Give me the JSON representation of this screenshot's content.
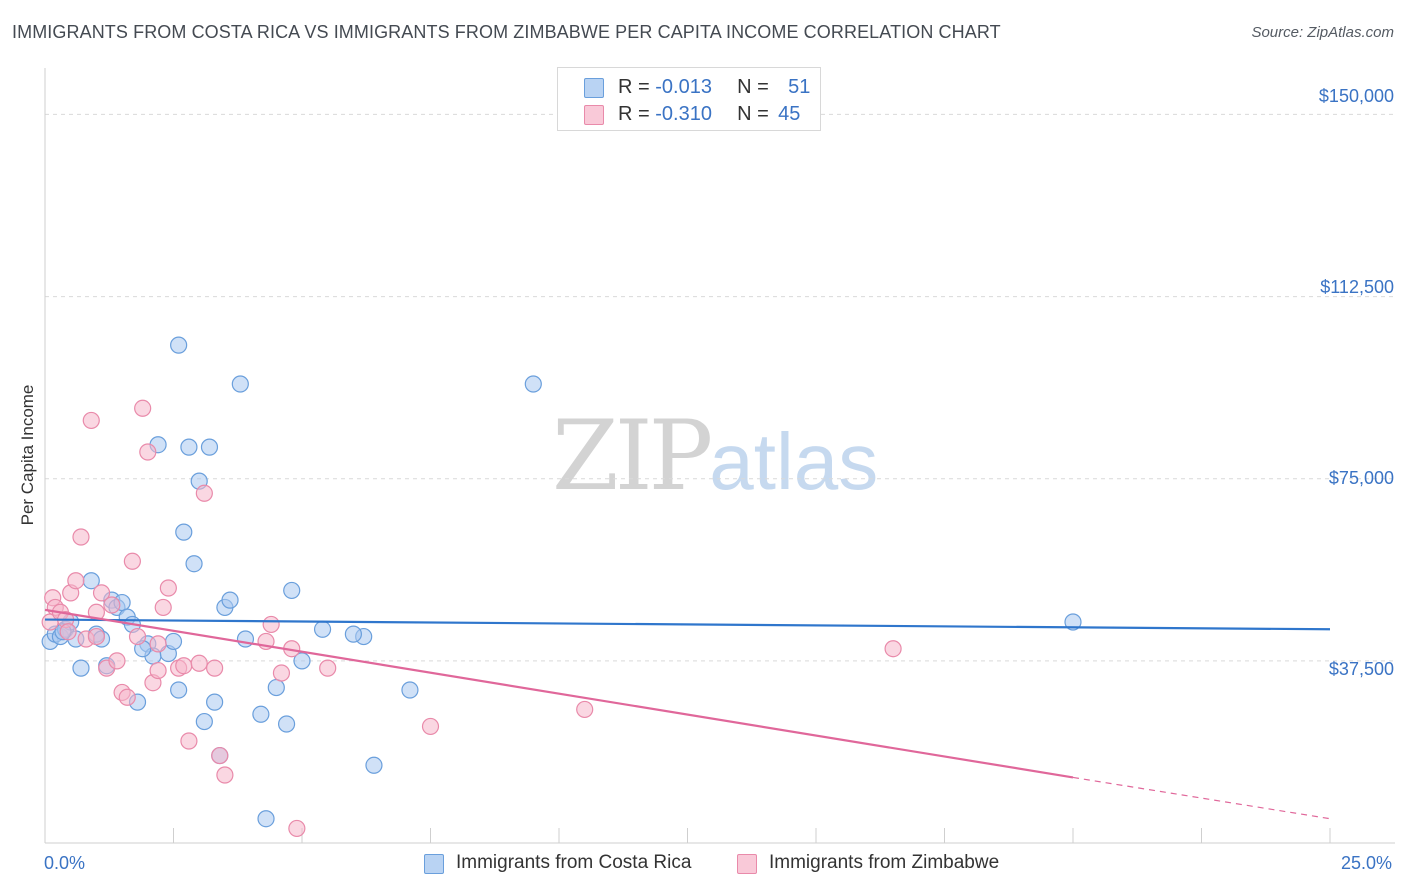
{
  "title": "IMMIGRANTS FROM COSTA RICA VS IMMIGRANTS FROM ZIMBABWE PER CAPITA INCOME CORRELATION CHART",
  "source": "Source: ZipAtlas.com",
  "watermark": {
    "part1": "ZIP",
    "part2": "atlas"
  },
  "colors": {
    "blue_fill": "#a9c8f0",
    "blue_stroke": "#6a9fdc",
    "blue_line": "#2f76cc",
    "pink_fill": "#f5b6cb",
    "pink_stroke": "#e98aaa",
    "pink_line": "#e0679a",
    "tick_text": "#3a73c4",
    "grid": "#d9d9d9"
  },
  "legend": {
    "series1": {
      "r_label": "R = ",
      "r_value": "-0.013",
      "n_label": "N = ",
      "n_value": "51"
    },
    "series2": {
      "r_label": "R = ",
      "r_value": "-0.310",
      "n_label": "N = ",
      "n_value": "45"
    }
  },
  "bottom_legend": {
    "series1": "Immigrants from Costa Rica",
    "series2": "Immigrants from Zimbabwe"
  },
  "chart_data": {
    "type": "scatter",
    "title": "IMMIGRANTS FROM COSTA RICA VS IMMIGRANTS FROM ZIMBABWE PER CAPITA INCOME CORRELATION CHART",
    "xlabel": "",
    "ylabel": "Per Capita Income",
    "xlim": [
      0,
      25
    ],
    "ylim": [
      0,
      157500
    ],
    "x_tick_labels": {
      "left": "0.0%",
      "right": "25.0%"
    },
    "y_ticks": [
      {
        "value": 37500,
        "label": "$37,500"
      },
      {
        "value": 75000,
        "label": "$75,000"
      },
      {
        "value": 112500,
        "label": "$112,500"
      },
      {
        "value": 150000,
        "label": "$150,000"
      }
    ],
    "series": [
      {
        "name": "Immigrants from Costa Rica",
        "color": "blue",
        "trend": {
          "x0": 0.0,
          "y0": 46000,
          "x1": 25.0,
          "y1": 44000
        },
        "points": [
          [
            0.1,
            41500
          ],
          [
            0.2,
            43000
          ],
          [
            0.3,
            42500
          ],
          [
            0.4,
            44000
          ],
          [
            0.5,
            45500
          ],
          [
            0.6,
            42000
          ],
          [
            0.7,
            36000
          ],
          [
            0.9,
            54000
          ],
          [
            1.0,
            43000
          ],
          [
            1.1,
            42000
          ],
          [
            1.2,
            36500
          ],
          [
            1.3,
            50000
          ],
          [
            1.4,
            48500
          ],
          [
            1.5,
            49500
          ],
          [
            1.6,
            46500
          ],
          [
            1.7,
            45000
          ],
          [
            1.8,
            29000
          ],
          [
            2.0,
            41000
          ],
          [
            2.1,
            38500
          ],
          [
            2.2,
            82000
          ],
          [
            2.4,
            39000
          ],
          [
            2.5,
            41500
          ],
          [
            2.6,
            31500
          ],
          [
            2.6,
            102500
          ],
          [
            2.7,
            64000
          ],
          [
            2.8,
            81500
          ],
          [
            2.9,
            57500
          ],
          [
            3.0,
            74500
          ],
          [
            3.1,
            25000
          ],
          [
            3.2,
            81500
          ],
          [
            3.3,
            29000
          ],
          [
            3.4,
            18000
          ],
          [
            3.5,
            48500
          ],
          [
            3.6,
            50000
          ],
          [
            3.8,
            94500
          ],
          [
            4.2,
            26500
          ],
          [
            4.3,
            5000
          ],
          [
            4.5,
            32000
          ],
          [
            4.7,
            24500
          ],
          [
            4.8,
            52000
          ],
          [
            5.0,
            37500
          ],
          [
            5.4,
            44000
          ],
          [
            6.2,
            42500
          ],
          [
            6.4,
            16000
          ],
          [
            7.1,
            31500
          ],
          [
            9.5,
            94500
          ],
          [
            20.0,
            45500
          ],
          [
            6.0,
            43000
          ],
          [
            3.9,
            42000
          ],
          [
            1.9,
            40000
          ],
          [
            0.35,
            43500
          ]
        ]
      },
      {
        "name": "Immigrants from Zimbabwe",
        "color": "pink",
        "trend": {
          "x0": 0.0,
          "y0": 48000,
          "x1": 20.0,
          "y1": 13500,
          "dash_x1": 25.0,
          "dash_y1": 5000
        },
        "points": [
          [
            0.1,
            45500
          ],
          [
            0.15,
            50500
          ],
          [
            0.2,
            48500
          ],
          [
            0.3,
            47500
          ],
          [
            0.4,
            46000
          ],
          [
            0.5,
            51500
          ],
          [
            0.6,
            54000
          ],
          [
            0.7,
            63000
          ],
          [
            0.8,
            42000
          ],
          [
            0.9,
            87000
          ],
          [
            1.0,
            47500
          ],
          [
            1.1,
            51500
          ],
          [
            1.2,
            36000
          ],
          [
            1.3,
            49000
          ],
          [
            1.4,
            37500
          ],
          [
            1.5,
            31000
          ],
          [
            1.6,
            30000
          ],
          [
            1.7,
            58000
          ],
          [
            1.8,
            42500
          ],
          [
            1.9,
            89500
          ],
          [
            2.0,
            80500
          ],
          [
            2.1,
            33000
          ],
          [
            2.2,
            35500
          ],
          [
            2.3,
            48500
          ],
          [
            2.4,
            52500
          ],
          [
            2.6,
            36000
          ],
          [
            2.7,
            36500
          ],
          [
            2.8,
            21000
          ],
          [
            3.1,
            72000
          ],
          [
            3.3,
            36000
          ],
          [
            3.4,
            18000
          ],
          [
            3.5,
            14000
          ],
          [
            4.3,
            41500
          ],
          [
            4.4,
            45000
          ],
          [
            4.6,
            35000
          ],
          [
            4.8,
            40000
          ],
          [
            4.9,
            3000
          ],
          [
            5.5,
            36000
          ],
          [
            7.5,
            24000
          ],
          [
            10.5,
            27500
          ],
          [
            16.5,
            40000
          ],
          [
            1.0,
            42500
          ],
          [
            0.45,
            43500
          ],
          [
            3.0,
            37000
          ],
          [
            2.2,
            41000
          ]
        ]
      }
    ]
  }
}
